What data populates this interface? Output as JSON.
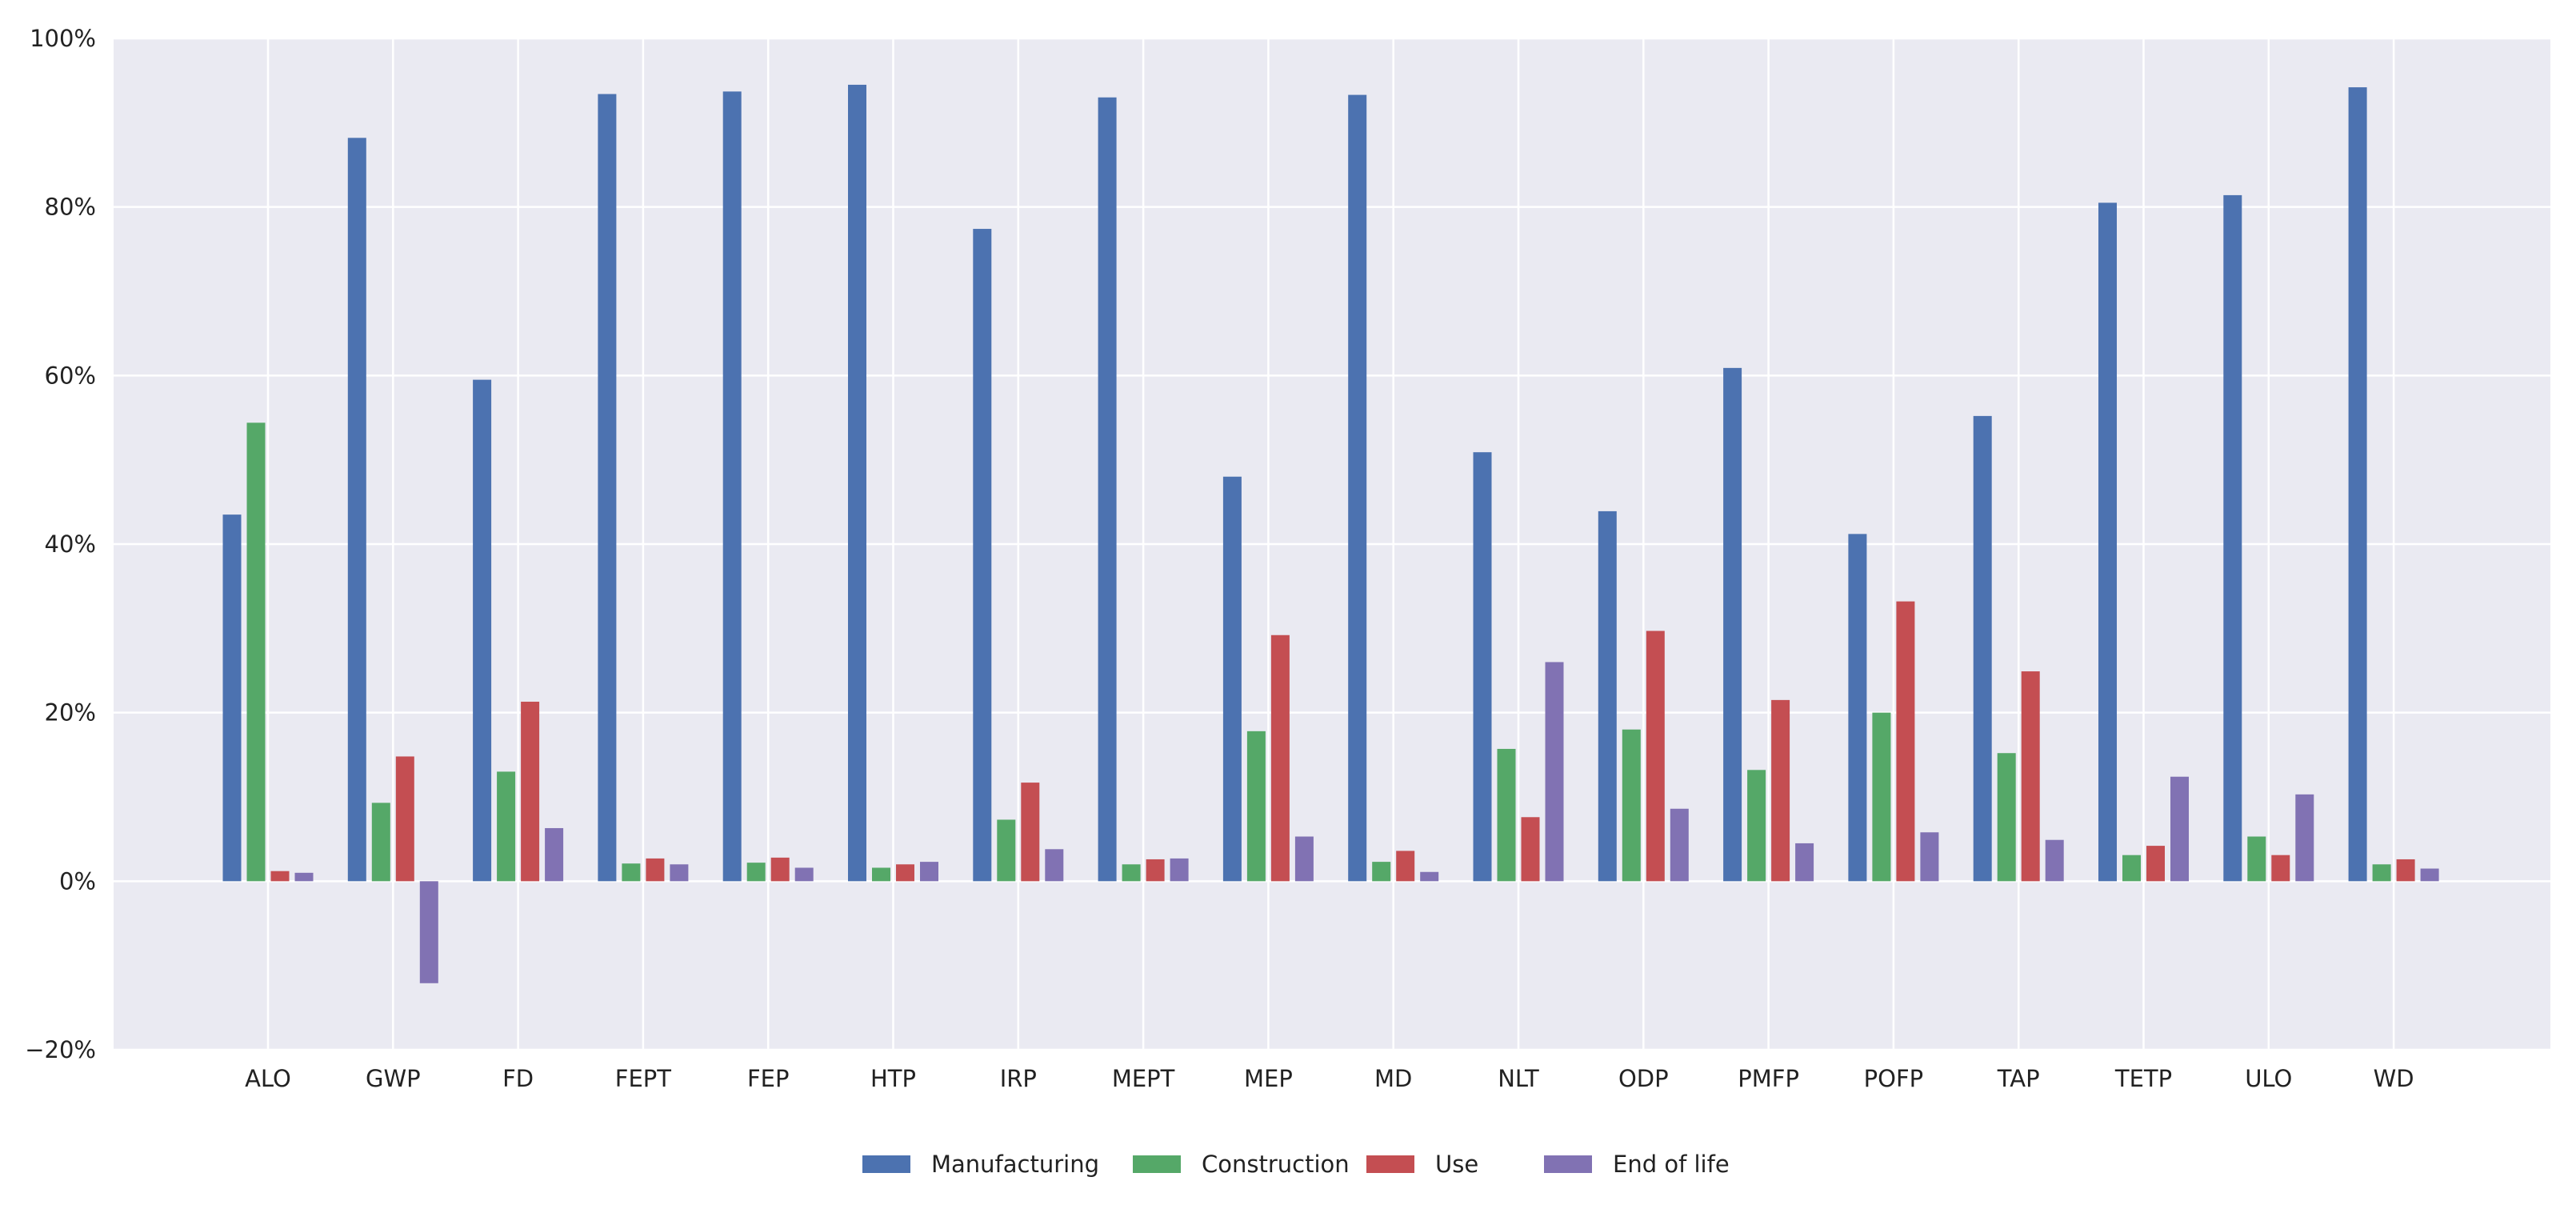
{
  "chart_data": {
    "type": "bar",
    "title": "",
    "xlabel": "",
    "ylabel": "",
    "ylim": [
      -20,
      100
    ],
    "yticks": [
      -20,
      0,
      20,
      40,
      60,
      80,
      100
    ],
    "ytick_labels": [
      "−20%",
      "0%",
      "20%",
      "40%",
      "60%",
      "80%",
      "100%"
    ],
    "grid": true,
    "legend_position": "bottom-center",
    "categories": [
      "ALO",
      "GWP",
      "FD",
      "FEPT",
      "FEP",
      "HTP",
      "IRP",
      "MEPT",
      "MEP",
      "MD",
      "NLT",
      "ODP",
      "PMFP",
      "POFP",
      "TAP",
      "TETP",
      "ULO",
      "WD"
    ],
    "series": [
      {
        "name": "Manufacturing",
        "color": "#4c72b0",
        "values": [
          43.5,
          88.2,
          59.5,
          93.4,
          93.7,
          94.5,
          77.4,
          93.0,
          48.0,
          93.3,
          50.9,
          43.9,
          60.9,
          41.2,
          55.2,
          80.5,
          81.4,
          94.2
        ]
      },
      {
        "name": "Construction",
        "color": "#55a868",
        "values": [
          54.4,
          9.3,
          13.0,
          2.1,
          2.2,
          1.6,
          7.3,
          2.0,
          17.8,
          2.3,
          15.7,
          18.0,
          13.2,
          20.0,
          15.2,
          3.1,
          5.3,
          2.0
        ]
      },
      {
        "name": "Use",
        "color": "#c44e52",
        "values": [
          1.2,
          14.8,
          21.3,
          2.7,
          2.8,
          2.0,
          11.7,
          2.6,
          29.2,
          3.6,
          7.6,
          29.7,
          21.5,
          33.2,
          24.9,
          4.2,
          3.1,
          2.6
        ]
      },
      {
        "name": "End of life",
        "color": "#8172b3",
        "values": [
          1.0,
          -12.1,
          6.3,
          2.0,
          1.6,
          2.3,
          3.8,
          2.7,
          5.3,
          1.1,
          26.0,
          8.6,
          4.5,
          5.8,
          4.9,
          12.4,
          10.3,
          1.5
        ]
      }
    ]
  },
  "colors": {
    "plot_background": "#eaeaf2",
    "grid": "#ffffff"
  }
}
